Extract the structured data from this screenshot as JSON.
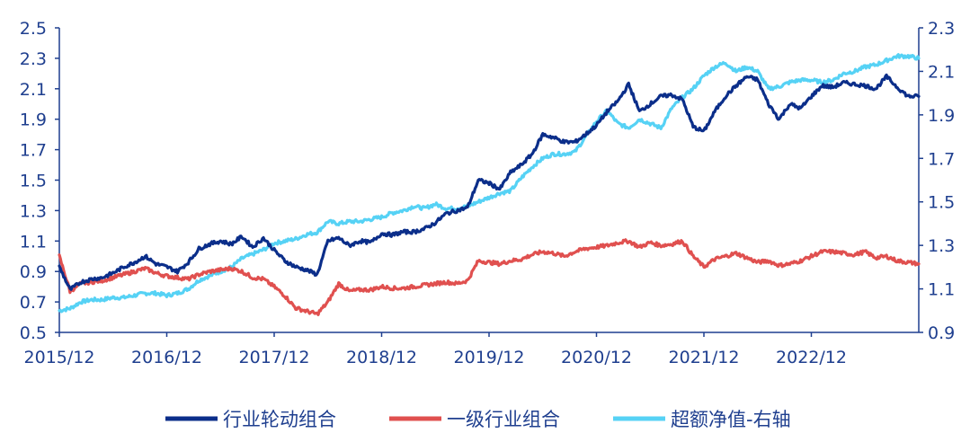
{
  "chart_data": {
    "type": "line",
    "title": "",
    "left_axis": {
      "ylim": [
        0.5,
        2.5
      ],
      "ticks": [
        "0.5",
        "0.7",
        "0.9",
        "1.1",
        "1.3",
        "1.5",
        "1.7",
        "1.9",
        "2.1",
        "2.3",
        "2.5"
      ]
    },
    "right_axis": {
      "ylim": [
        0.9,
        2.3
      ],
      "ticks": [
        "0.9",
        "1.1",
        "1.3",
        "1.5",
        "1.7",
        "1.9",
        "2.1",
        "2.3"
      ]
    },
    "x_labels": [
      "2015/12",
      "2016/12",
      "2017/12",
      "2018/12",
      "2019/12",
      "2020/12",
      "2021/12",
      "2022/12"
    ],
    "x_range": [
      2015.9,
      2023.9
    ],
    "grid": false,
    "legend_position": "bottom",
    "series": [
      {
        "name": "行业轮动组合",
        "axis": "left",
        "color": "#0b2e8a",
        "x": [
          2015.9,
          2016.0,
          2016.1,
          2016.2,
          2016.3,
          2016.4,
          2016.5,
          2016.6,
          2016.7,
          2016.8,
          2016.9,
          2017.0,
          2017.1,
          2017.2,
          2017.3,
          2017.4,
          2017.5,
          2017.6,
          2017.7,
          2017.8,
          2017.9,
          2018.0,
          2018.1,
          2018.2,
          2018.3,
          2018.4,
          2018.5,
          2018.6,
          2018.7,
          2018.8,
          2018.9,
          2019.0,
          2019.1,
          2019.2,
          2019.3,
          2019.4,
          2019.5,
          2019.6,
          2019.7,
          2019.8,
          2019.9,
          2020.0,
          2020.1,
          2020.2,
          2020.3,
          2020.4,
          2020.5,
          2020.6,
          2020.7,
          2020.8,
          2020.9,
          2021.0,
          2021.1,
          2021.2,
          2021.3,
          2021.4,
          2021.5,
          2021.6,
          2021.7,
          2021.8,
          2021.9,
          2022.0,
          2022.1,
          2022.2,
          2022.3,
          2022.4,
          2022.5,
          2022.6,
          2022.7,
          2022.8,
          2022.9,
          2023.0,
          2023.1,
          2023.2,
          2023.3,
          2023.4,
          2023.5,
          2023.6,
          2023.7,
          2023.8,
          2023.9
        ],
        "values": [
          0.93,
          0.78,
          0.83,
          0.85,
          0.86,
          0.89,
          0.93,
          0.96,
          1.0,
          0.95,
          0.93,
          0.9,
          0.96,
          1.05,
          1.08,
          1.1,
          1.08,
          1.13,
          1.06,
          1.12,
          1.04,
          0.97,
          0.93,
          0.91,
          0.88,
          1.1,
          1.12,
          1.07,
          1.1,
          1.09,
          1.15,
          1.14,
          1.16,
          1.16,
          1.18,
          1.22,
          1.28,
          1.3,
          1.32,
          1.5,
          1.48,
          1.44,
          1.55,
          1.6,
          1.67,
          1.8,
          1.78,
          1.75,
          1.75,
          1.8,
          1.86,
          1.95,
          2.02,
          2.13,
          1.95,
          2.0,
          2.05,
          2.06,
          2.03,
          1.85,
          1.82,
          1.95,
          2.05,
          2.12,
          2.18,
          2.16,
          2.0,
          1.9,
          2.0,
          1.97,
          2.05,
          2.12,
          2.11,
          2.14,
          2.13,
          2.12,
          2.1,
          2.18,
          2.11,
          2.05,
          2.05
        ]
      },
      {
        "name": "一级行业组合",
        "axis": "left",
        "color": "#e0504f",
        "x": [
          2015.9,
          2016.0,
          2016.1,
          2016.2,
          2016.3,
          2016.4,
          2016.5,
          2016.6,
          2016.7,
          2016.8,
          2016.9,
          2017.0,
          2017.1,
          2017.2,
          2017.3,
          2017.4,
          2017.5,
          2017.6,
          2017.7,
          2017.8,
          2017.9,
          2018.0,
          2018.1,
          2018.2,
          2018.3,
          2018.4,
          2018.5,
          2018.6,
          2018.7,
          2018.8,
          2018.9,
          2019.0,
          2019.1,
          2019.2,
          2019.3,
          2019.4,
          2019.5,
          2019.6,
          2019.7,
          2019.8,
          2019.9,
          2020.0,
          2020.1,
          2020.2,
          2020.3,
          2020.4,
          2020.5,
          2020.6,
          2020.7,
          2020.8,
          2020.9,
          2021.0,
          2021.1,
          2021.2,
          2021.3,
          2021.4,
          2021.5,
          2021.6,
          2021.7,
          2021.8,
          2021.9,
          2022.0,
          2022.1,
          2022.2,
          2022.3,
          2022.4,
          2022.5,
          2022.6,
          2022.7,
          2022.8,
          2022.9,
          2023.0,
          2023.1,
          2023.2,
          2023.3,
          2023.4,
          2023.5,
          2023.6,
          2023.7,
          2023.8,
          2023.9
        ],
        "values": [
          1.0,
          0.77,
          0.82,
          0.83,
          0.84,
          0.86,
          0.88,
          0.9,
          0.92,
          0.89,
          0.87,
          0.86,
          0.85,
          0.88,
          0.9,
          0.91,
          0.92,
          0.9,
          0.86,
          0.85,
          0.8,
          0.74,
          0.66,
          0.64,
          0.62,
          0.7,
          0.82,
          0.77,
          0.78,
          0.78,
          0.8,
          0.79,
          0.79,
          0.8,
          0.81,
          0.82,
          0.83,
          0.82,
          0.84,
          0.97,
          0.96,
          0.95,
          0.97,
          0.98,
          1.01,
          1.03,
          1.02,
          1.0,
          1.03,
          1.05,
          1.06,
          1.07,
          1.09,
          1.1,
          1.06,
          1.09,
          1.07,
          1.08,
          1.1,
          1.0,
          0.93,
          0.98,
          1.0,
          1.02,
          0.99,
          0.96,
          0.97,
          0.94,
          0.95,
          0.97,
          1.0,
          1.03,
          1.03,
          1.02,
          1.01,
          1.03,
          0.99,
          1.0,
          0.97,
          0.96,
          0.95
        ]
      },
      {
        "name": "超额净值-右轴",
        "axis": "right",
        "color": "#56d2f5",
        "x": [
          2015.9,
          2016.0,
          2016.1,
          2016.2,
          2016.3,
          2016.4,
          2016.5,
          2016.6,
          2016.7,
          2016.8,
          2016.9,
          2017.0,
          2017.1,
          2017.2,
          2017.3,
          2017.4,
          2017.5,
          2017.6,
          2017.7,
          2017.8,
          2017.9,
          2018.0,
          2018.1,
          2018.2,
          2018.3,
          2018.4,
          2018.5,
          2018.6,
          2018.7,
          2018.8,
          2018.9,
          2019.0,
          2019.1,
          2019.2,
          2019.3,
          2019.4,
          2019.5,
          2019.6,
          2019.7,
          2019.8,
          2019.9,
          2020.0,
          2020.1,
          2020.2,
          2020.3,
          2020.4,
          2020.5,
          2020.6,
          2020.7,
          2020.8,
          2020.9,
          2021.0,
          2021.1,
          2021.2,
          2021.3,
          2021.4,
          2021.5,
          2021.6,
          2021.7,
          2021.8,
          2021.9,
          2022.0,
          2022.1,
          2022.2,
          2022.3,
          2022.4,
          2022.5,
          2022.6,
          2022.7,
          2022.8,
          2022.9,
          2023.0,
          2023.1,
          2023.2,
          2023.3,
          2023.4,
          2023.5,
          2023.6,
          2023.7,
          2023.8,
          2023.9
        ],
        "values": [
          1.0,
          1.01,
          1.04,
          1.05,
          1.05,
          1.06,
          1.06,
          1.07,
          1.08,
          1.08,
          1.07,
          1.08,
          1.1,
          1.14,
          1.16,
          1.18,
          1.2,
          1.24,
          1.26,
          1.28,
          1.31,
          1.32,
          1.33,
          1.35,
          1.36,
          1.41,
          1.4,
          1.41,
          1.41,
          1.42,
          1.43,
          1.45,
          1.46,
          1.48,
          1.47,
          1.49,
          1.47,
          1.47,
          1.48,
          1.5,
          1.52,
          1.54,
          1.55,
          1.61,
          1.66,
          1.7,
          1.72,
          1.72,
          1.73,
          1.8,
          1.87,
          1.92,
          1.86,
          1.84,
          1.88,
          1.86,
          1.84,
          1.93,
          1.98,
          2.02,
          2.08,
          2.12,
          2.14,
          2.1,
          2.12,
          2.1,
          2.02,
          2.03,
          2.05,
          2.06,
          2.06,
          2.05,
          2.06,
          2.09,
          2.1,
          2.12,
          2.13,
          2.15,
          2.17,
          2.17,
          2.16
        ]
      }
    ]
  }
}
